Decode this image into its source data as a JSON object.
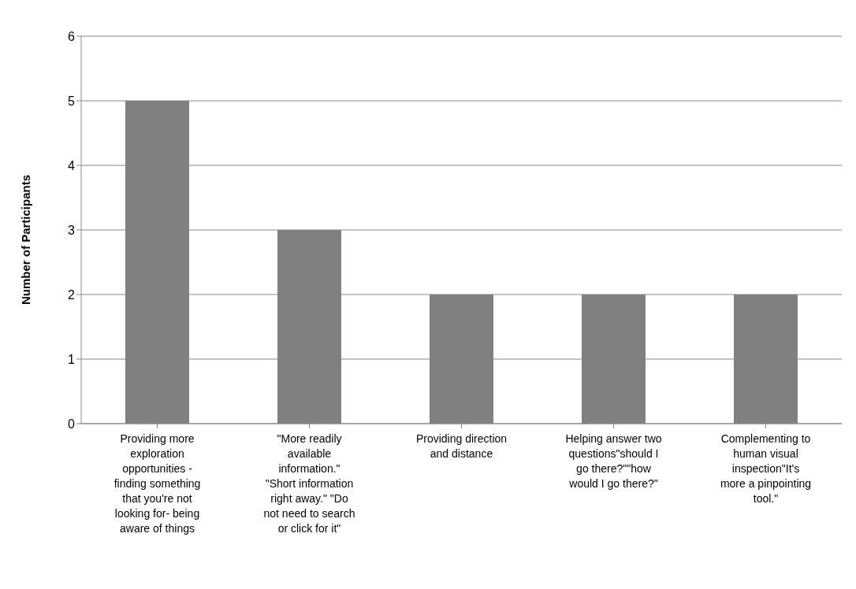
{
  "chart_data": {
    "type": "bar",
    "ylabel": "Number of Participants",
    "categories": [
      "Providing more exploration opportunities - finding something that you're not looking for- being aware of things",
      "\"More readily available information.\" \"Short information right away.\" \"Do not need to search or click for it\"",
      "Providing direction and distance",
      "Helping answer two questions\"should I go there?\"\"how would I go there?\"",
      "Complementing to human visual inspection\"It's more a pinpointing tool.\""
    ],
    "values": [
      5,
      3,
      2,
      2,
      2
    ],
    "color": "#808080",
    "ylim": [
      0,
      6
    ],
    "yticks": [
      0,
      1,
      2,
      3,
      4,
      5,
      6
    ],
    "grid": "y",
    "legend": false
  }
}
